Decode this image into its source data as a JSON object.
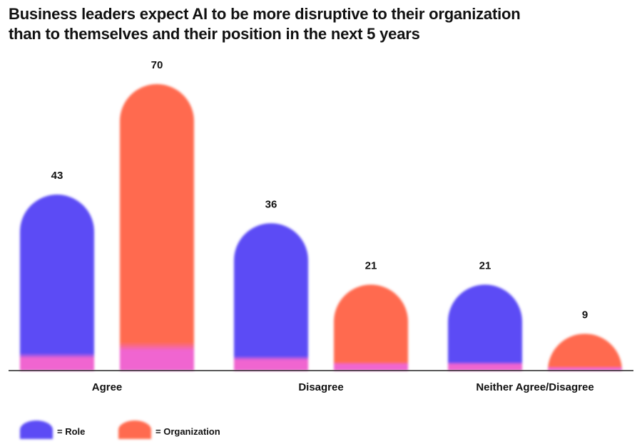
{
  "title_lines": [
    "Business leaders expect AI to be more disruptive to their organization",
    "than to themselves and their position in the next 5 years"
  ],
  "colors": {
    "role": "#5b4cf5",
    "organization": "#ff6b4f",
    "base_glow": "#f065d0",
    "axis": "#222222"
  },
  "chart_data": {
    "type": "bar",
    "title": "Business leaders expect AI to be more disruptive to their organization than to themselves and their position in the next 5 years",
    "categories": [
      "Agree",
      "Disagree",
      "Neither Agree/Disagree"
    ],
    "series": [
      {
        "name": "Role",
        "legend_label": "= Role",
        "values": [
          43,
          36,
          21
        ]
      },
      {
        "name": "Organization",
        "legend_label": "= Organization",
        "values": [
          70,
          21,
          9
        ]
      }
    ],
    "ylim": [
      0,
      70
    ],
    "xlabel": "",
    "ylabel": "",
    "grid": false,
    "legend_position": "bottom-left"
  }
}
